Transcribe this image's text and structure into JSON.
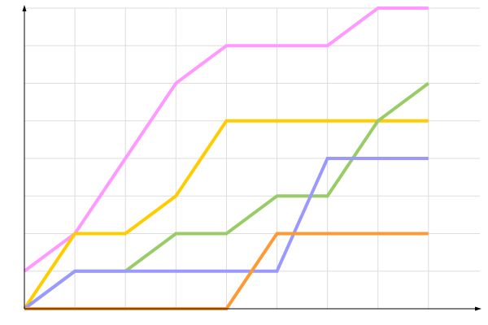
{
  "chart_data": {
    "type": "line",
    "title": "",
    "xlabel": "",
    "ylabel": "",
    "x": [
      0,
      1,
      2,
      3,
      4,
      5,
      6,
      7,
      8
    ],
    "xlim": [
      0,
      9
    ],
    "ylim": [
      0,
      8
    ],
    "grid": true,
    "legend": "none",
    "series": [
      {
        "color": "#ff99ff",
        "values": [
          1,
          2,
          4,
          6,
          7,
          7,
          7,
          8,
          8
        ]
      },
      {
        "color": "#ffcc00",
        "values": [
          0,
          2,
          2,
          3,
          5,
          5,
          5,
          5,
          5
        ]
      },
      {
        "color": "#99cc66",
        "values": [
          0,
          1,
          1,
          2,
          2,
          3,
          3,
          5,
          6
        ]
      },
      {
        "color": "#9999ff",
        "values": [
          0,
          1,
          1,
          1,
          1,
          1,
          4,
          4,
          4
        ]
      },
      {
        "color": "#ff9933",
        "values": [
          0,
          0,
          0,
          0,
          0,
          2,
          2,
          2,
          2
        ]
      }
    ]
  }
}
